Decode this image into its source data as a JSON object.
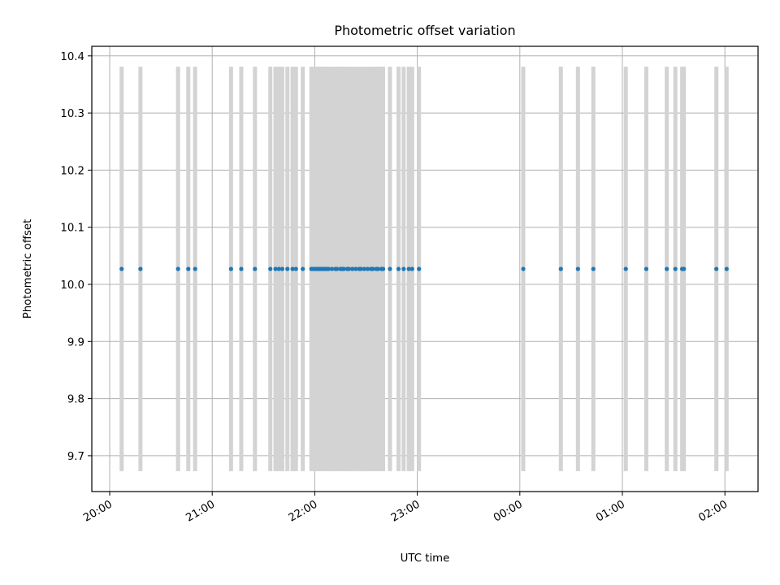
{
  "chart_data": {
    "type": "scatter",
    "title": "Photometric offset variation",
    "xlabel": "UTC time",
    "ylabel": "Photometric offset",
    "x_tick_labels": [
      "20:00",
      "21:00",
      "22:00",
      "23:00",
      "00:00",
      "01:00",
      "02:00"
    ],
    "y_tick_labels": [
      "9.7",
      "9.8",
      "9.9",
      "10.0",
      "10.1",
      "10.2",
      "10.3",
      "10.4"
    ],
    "ylim": [
      9.64,
      10.42
    ],
    "grid": true,
    "series": [
      {
        "color": "#1f77b4",
        "points": [
          {
            "x": "20:07",
            "y": 10.027
          },
          {
            "x": "20:18",
            "y": 10.027
          },
          {
            "x": "20:40",
            "y": 10.027
          },
          {
            "x": "20:46",
            "y": 10.027
          },
          {
            "x": "20:50",
            "y": 10.027
          },
          {
            "x": "21:11",
            "y": 10.027
          },
          {
            "x": "21:17",
            "y": 10.027
          },
          {
            "x": "21:25",
            "y": 10.027
          },
          {
            "x": "21:34",
            "y": 10.027
          },
          {
            "x": "21:37",
            "y": 10.027
          },
          {
            "x": "21:39",
            "y": 10.027
          },
          {
            "x": "21:41",
            "y": 10.027
          },
          {
            "x": "21:44",
            "y": 10.027
          },
          {
            "x": "21:47",
            "y": 10.027
          },
          {
            "x": "21:49",
            "y": 10.027
          },
          {
            "x": "21:53",
            "y": 10.027
          },
          {
            "x": "21:58",
            "y": 10.027
          },
          {
            "x": "21:59",
            "y": 10.027
          },
          {
            "x": "22:00",
            "y": 10.027
          },
          {
            "x": "22:01",
            "y": 10.027
          },
          {
            "x": "22:02",
            "y": 10.027
          },
          {
            "x": "22:03",
            "y": 10.027
          },
          {
            "x": "22:04",
            "y": 10.027
          },
          {
            "x": "22:05",
            "y": 10.027
          },
          {
            "x": "22:06",
            "y": 10.027
          },
          {
            "x": "22:07",
            "y": 10.027
          },
          {
            "x": "22:08",
            "y": 10.027
          },
          {
            "x": "22:10",
            "y": 10.027
          },
          {
            "x": "22:12",
            "y": 10.027
          },
          {
            "x": "22:13",
            "y": 10.027
          },
          {
            "x": "22:15",
            "y": 10.027
          },
          {
            "x": "22:16",
            "y": 10.027
          },
          {
            "x": "22:17",
            "y": 10.027
          },
          {
            "x": "22:19",
            "y": 10.027
          },
          {
            "x": "22:20",
            "y": 10.027
          },
          {
            "x": "22:22",
            "y": 10.027
          },
          {
            "x": "22:24",
            "y": 10.027
          },
          {
            "x": "22:26",
            "y": 10.027
          },
          {
            "x": "22:27",
            "y": 10.027
          },
          {
            "x": "22:29",
            "y": 10.027
          },
          {
            "x": "22:31",
            "y": 10.027
          },
          {
            "x": "22:33",
            "y": 10.027
          },
          {
            "x": "22:34",
            "y": 10.027
          },
          {
            "x": "22:36",
            "y": 10.027
          },
          {
            "x": "22:37",
            "y": 10.027
          },
          {
            "x": "22:39",
            "y": 10.027
          },
          {
            "x": "22:40",
            "y": 10.027
          },
          {
            "x": "22:44",
            "y": 10.027
          },
          {
            "x": "22:49",
            "y": 10.027
          },
          {
            "x": "22:52",
            "y": 10.027
          },
          {
            "x": "22:55",
            "y": 10.027
          },
          {
            "x": "22:57",
            "y": 10.027
          },
          {
            "x": "23:01",
            "y": 10.027
          },
          {
            "x": "00:02",
            "y": 10.027
          },
          {
            "x": "00:24",
            "y": 10.027
          },
          {
            "x": "00:34",
            "y": 10.027
          },
          {
            "x": "00:43",
            "y": 10.027
          },
          {
            "x": "01:02",
            "y": 10.027
          },
          {
            "x": "01:14",
            "y": 10.027
          },
          {
            "x": "01:26",
            "y": 10.027
          },
          {
            "x": "01:31",
            "y": 10.027
          },
          {
            "x": "01:35",
            "y": 10.027
          },
          {
            "x": "01:36",
            "y": 10.027
          },
          {
            "x": "01:55",
            "y": 10.027
          },
          {
            "x": "02:01",
            "y": 10.027
          }
        ],
        "error_low": 9.673,
        "error_high": 10.381,
        "error_color": "#d3d3d3"
      }
    ]
  }
}
